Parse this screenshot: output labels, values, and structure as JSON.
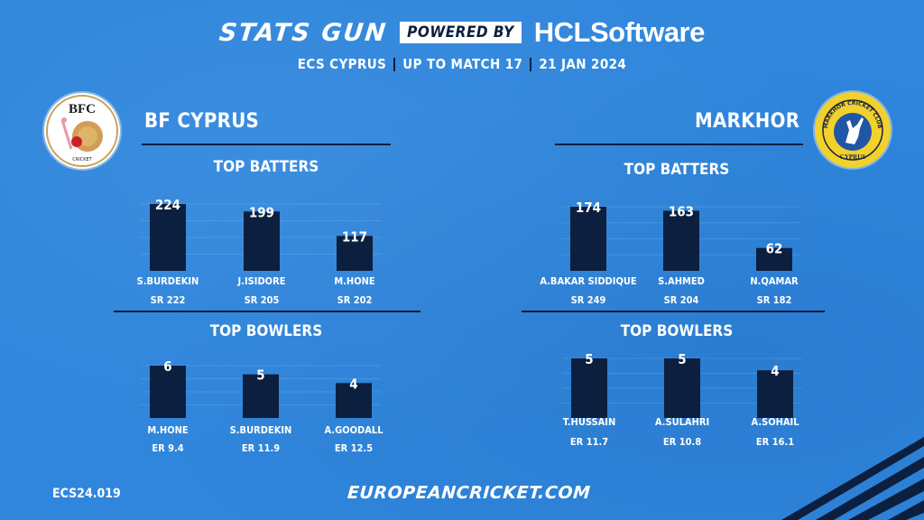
{
  "header": {
    "stats_gun": "STATS GUN",
    "powered_by": "POWERED BY",
    "sponsor": "HCLSoftware",
    "competition": "ECS CYPRUS",
    "stage": "UP TO MATCH 17",
    "date": "21 JAN 2024"
  },
  "teams": {
    "left": {
      "name": "BF CYPRUS",
      "logo_text": "BFC",
      "logo_caption": "CRICKET"
    },
    "right": {
      "name": "MARKHOR",
      "logo_text": "MARKHOR CRICKET CLUB",
      "logo_caption": "CYPRUS"
    }
  },
  "sections": {
    "batters": "TOP BATTERS",
    "bowlers": "TOP BOWLERS"
  },
  "footer": {
    "code": "ECS24.019",
    "url": "EUROPEANCRICKET.COM"
  },
  "colors": {
    "background": "#2f86dc",
    "bar": "#0c1f3f",
    "text": "#ffffff",
    "accent": "#0b1e3d",
    "markhor_logo": "#f1d22c"
  },
  "chart_data": [
    {
      "type": "bar",
      "title": "TOP BATTERS",
      "team": "BF CYPRUS",
      "categories": [
        "S.BURDEKIN",
        "J.ISIDORE",
        "M.HONE"
      ],
      "values": [
        224,
        199,
        117
      ],
      "sublabels": [
        "SR 222",
        "SR 205",
        "SR 202"
      ]
    },
    {
      "type": "bar",
      "title": "TOP BOWLERS",
      "team": "BF CYPRUS",
      "categories": [
        "M.HONE",
        "S.BURDEKIN",
        "A.GOODALL"
      ],
      "values": [
        6,
        5,
        4
      ],
      "sublabels": [
        "ER 9.4",
        "ER 11.9",
        "ER 12.5"
      ]
    },
    {
      "type": "bar",
      "title": "TOP BATTERS",
      "team": "MARKHOR",
      "categories": [
        "A.BAKAR SIDDIQUE",
        "S.AHMED",
        "N.QAMAR"
      ],
      "values": [
        174,
        163,
        62
      ],
      "sublabels": [
        "SR 249",
        "SR 204",
        "SR 182"
      ]
    },
    {
      "type": "bar",
      "title": "TOP BOWLERS",
      "team": "MARKHOR",
      "categories": [
        "T.HUSSAIN",
        "A.SULAHRI",
        "A.SOHAIL"
      ],
      "values": [
        5,
        5,
        4
      ],
      "sublabels": [
        "ER 11.7",
        "ER 10.8",
        "ER 16.1"
      ]
    }
  ]
}
